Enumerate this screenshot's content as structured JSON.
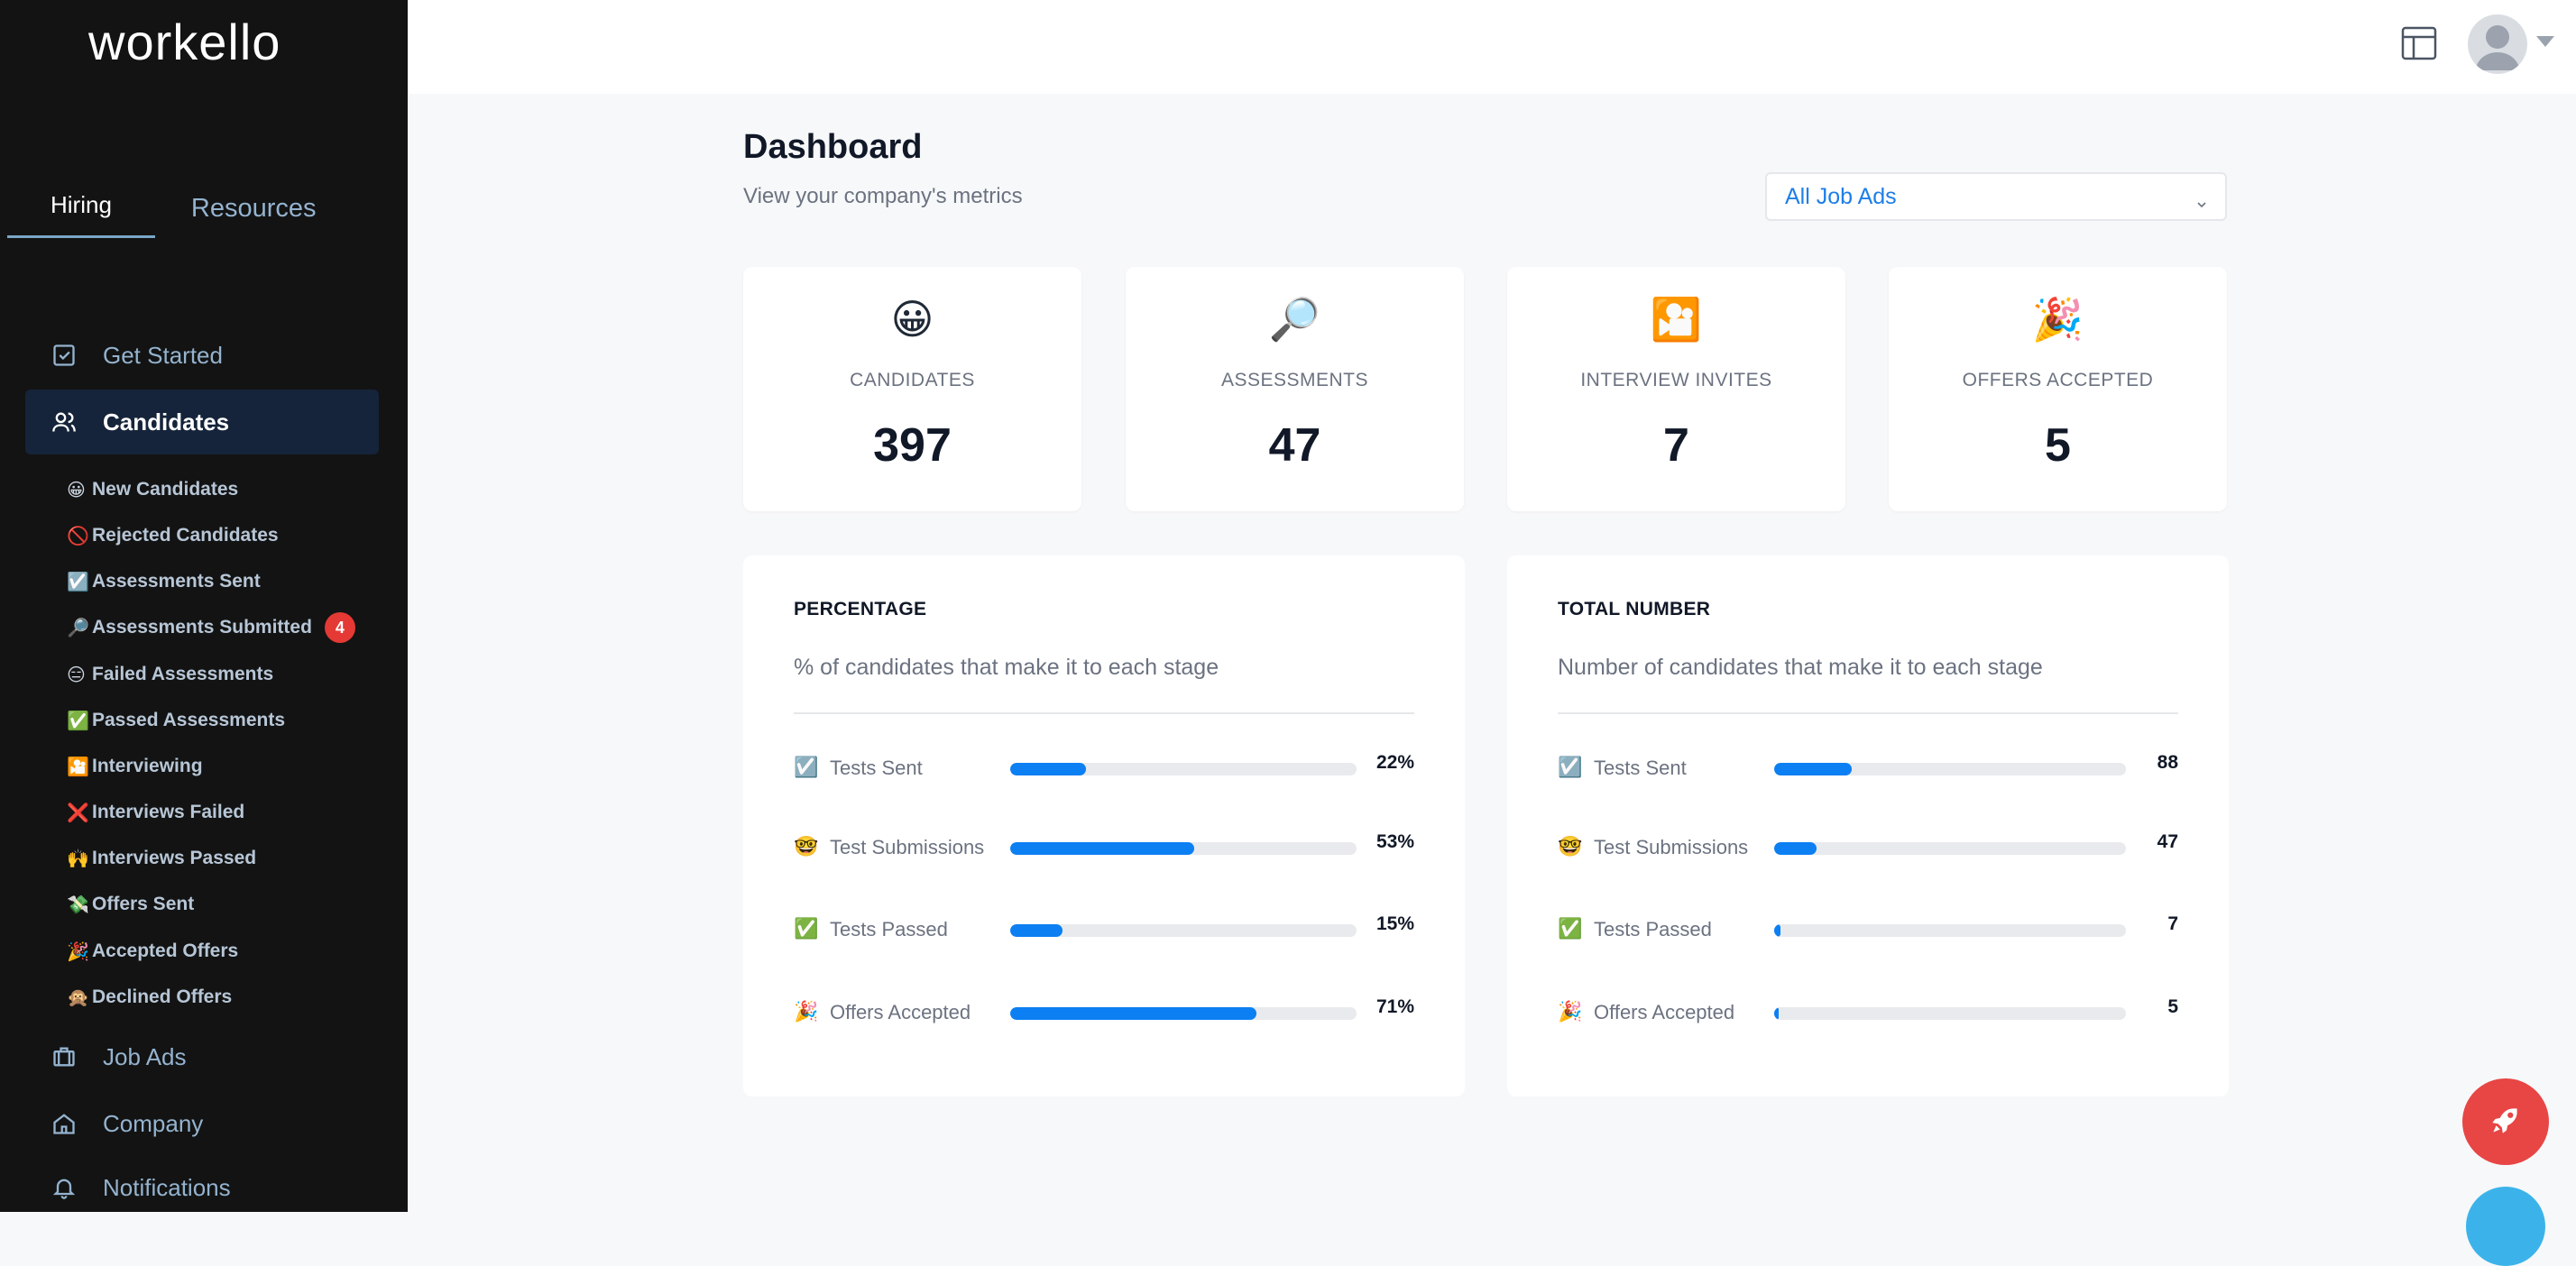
{
  "app": {
    "logo": "workello"
  },
  "sidebar": {
    "tabs": [
      {
        "label": "Hiring",
        "active": true
      },
      {
        "label": "Resources",
        "active": false
      }
    ],
    "nav": [
      {
        "label": "Get Started",
        "icon": "checkbox-icon"
      },
      {
        "label": "Candidates",
        "icon": "users-icon",
        "active": true
      },
      {
        "label": "Job Ads",
        "icon": "briefcase-icon"
      },
      {
        "label": "Company",
        "icon": "home-icon"
      },
      {
        "label": "Notifications",
        "icon": "bell-icon"
      }
    ],
    "subnav": [
      {
        "emoji": "😀",
        "label": "New Candidates"
      },
      {
        "emoji": "🚫",
        "label": "Rejected Candidates"
      },
      {
        "emoji": "☑️",
        "label": "Assessments Sent"
      },
      {
        "emoji": "🔎",
        "label": "Assessments Submitted",
        "badge": "4"
      },
      {
        "emoji": "😑",
        "label": "Failed Assessments"
      },
      {
        "emoji": "✅",
        "label": "Passed Assessments"
      },
      {
        "emoji": "🎦",
        "label": "Interviewing"
      },
      {
        "emoji": "❌",
        "label": "Interviews Failed"
      },
      {
        "emoji": "🙌",
        "label": "Interviews Passed"
      },
      {
        "emoji": "💸",
        "label": "Offers Sent"
      },
      {
        "emoji": "🎉",
        "label": "Accepted Offers"
      },
      {
        "emoji": "🙊",
        "label": "Declined Offers"
      }
    ]
  },
  "header": {
    "title": "Dashboard",
    "subtitle": "View your company's metrics",
    "filter": {
      "selected": "All Job Ads"
    }
  },
  "stats": [
    {
      "emoji": "😀",
      "label": "CANDIDATES",
      "value": "397"
    },
    {
      "emoji": "🔎",
      "label": "ASSESSMENTS",
      "value": "47"
    },
    {
      "emoji": "🎦",
      "label": "INTERVIEW INVITES",
      "value": "7"
    },
    {
      "emoji": "🎉",
      "label": "OFFERS ACCEPTED",
      "value": "5"
    }
  ],
  "panels": [
    {
      "title": "PERCENTAGE",
      "subtitle": "% of candidates that make it to each stage",
      "rows": [
        {
          "emoji": "☑️",
          "label": "Tests Sent",
          "value": "22%",
          "fill_fraction": 0.22
        },
        {
          "emoji": "🤓",
          "label": "Test Submissions",
          "value": "53%",
          "fill_fraction": 0.53
        },
        {
          "emoji": "✅",
          "label": "Tests Passed",
          "value": "15%",
          "fill_fraction": 0.15
        },
        {
          "emoji": "🎉",
          "label": "Offers Accepted",
          "value": "71%",
          "fill_fraction": 0.71
        }
      ]
    },
    {
      "title": "TOTAL NUMBER",
      "subtitle": "Number of candidates that make it to each stage",
      "rows": [
        {
          "emoji": "☑️",
          "label": "Tests Sent",
          "value": "88",
          "fill_fraction": 0.22
        },
        {
          "emoji": "🤓",
          "label": "Test Submissions",
          "value": "47",
          "fill_fraction": 0.12
        },
        {
          "emoji": "✅",
          "label": "Tests Passed",
          "value": "7",
          "fill_fraction": 0.018
        },
        {
          "emoji": "🎉",
          "label": "Offers Accepted",
          "value": "5",
          "fill_fraction": 0.013
        }
      ]
    }
  ],
  "colors": {
    "sidebar_bg": "#131313",
    "active_nav_bg": "#15243a",
    "accent": "#0c7ff2",
    "badge": "#e53935",
    "fab": "#e84545",
    "fab_secondary": "#3bb3ea"
  },
  "icons": {
    "layout": "layout-icon",
    "avatar": "user-avatar-icon",
    "fab": "rocket-icon"
  }
}
